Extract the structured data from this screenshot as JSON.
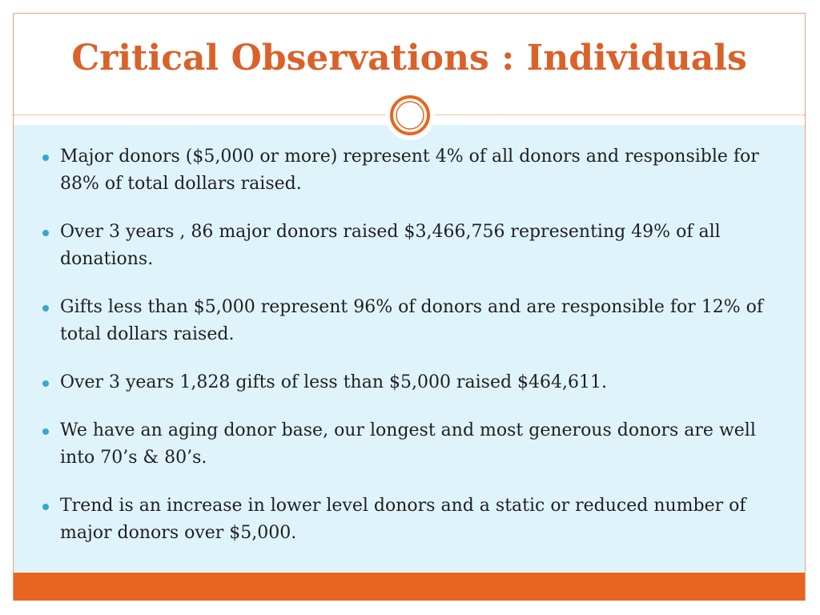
{
  "slide": {
    "title": "Critical Observations : Individuals",
    "bullets": [
      "Major donors ($5,000 or more) represent 4% of all donors and responsible for 88% of total dollars raised.",
      "Over 3 years , 86 major donors raised $3,466,756 representing 49% of all donations.",
      "Gifts less than $5,000 represent 96% of donors and are responsible for 12% of total dollars raised.",
      "Over 3 years 1,828 gifts of less than $5,000 raised $464,611.",
      "We have an aging donor base, our longest and most generous donors are well into 70’s & 80’s.",
      "Trend is an increase in lower level donors and a static or reduced number of major donors over $5,000."
    ]
  },
  "colors": {
    "title": "#d9622b",
    "body_background": "#dff4fa",
    "footer_bar": "#e8651f",
    "bullet_dot": "#38a6cf",
    "ornament_ring": "#e8651f"
  }
}
